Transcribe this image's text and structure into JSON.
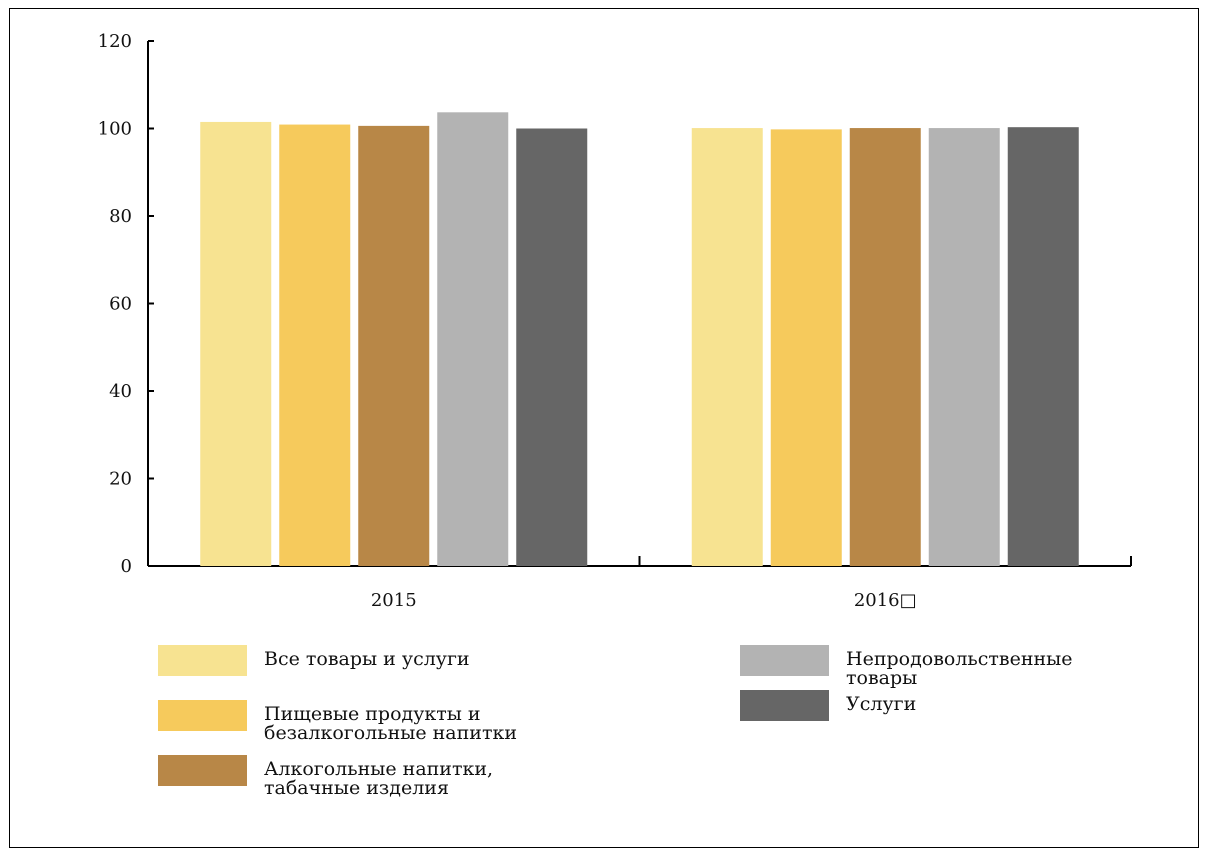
{
  "chart_data": {
    "type": "bar",
    "categories": [
      "2015",
      "2016□"
    ],
    "series": [
      {
        "name": "Все товары и услуги",
        "color": "#f7e391",
        "values": [
          101.5,
          100.1
        ]
      },
      {
        "name": "Пищевые продукты и\nбезалкогольные напитки",
        "color": "#f6ca5c",
        "values": [
          100.9,
          99.8
        ]
      },
      {
        "name": "Алкогольные напитки,\nтабачные изделия",
        "color": "#b88747",
        "values": [
          100.6,
          100.1
        ]
      },
      {
        "name": "Непродовольственные товары",
        "color": "#b3b3b3",
        "values": [
          103.7,
          100.1
        ]
      },
      {
        "name": "Услуги",
        "color": "#666666",
        "values": [
          100.0,
          100.3
        ]
      }
    ],
    "y_ticks": [
      "0",
      "20",
      "40",
      "60",
      "80",
      "100",
      "120"
    ],
    "ylim": [
      0,
      120
    ],
    "grid": false,
    "legend_position": "bottom",
    "title": "",
    "xlabel": "",
    "ylabel": ""
  }
}
